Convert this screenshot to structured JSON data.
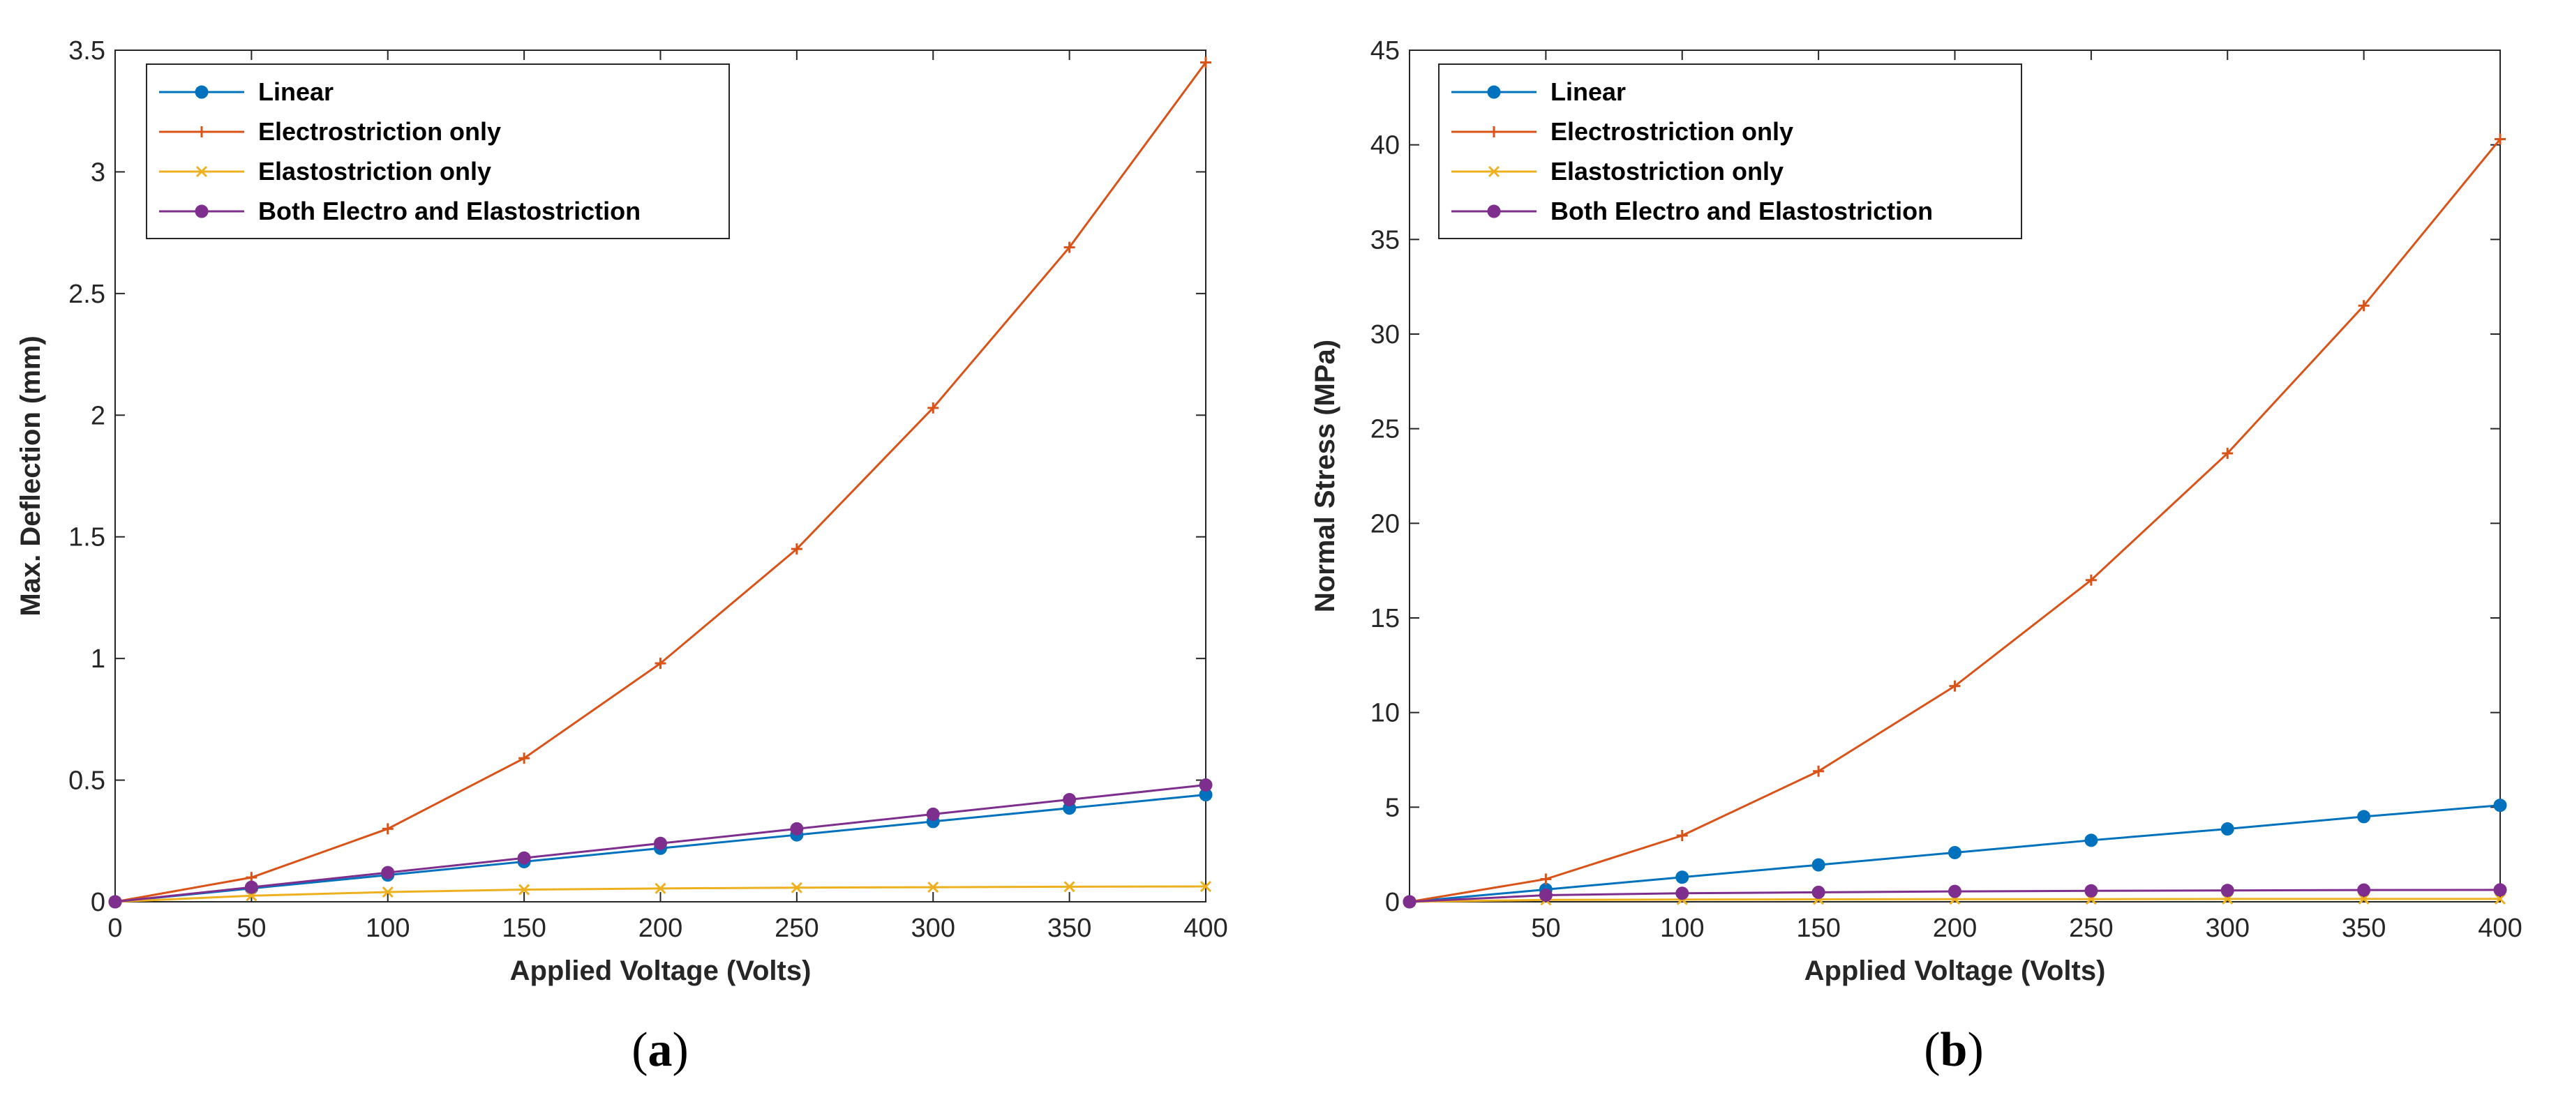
{
  "chart_data": [
    {
      "type": "line",
      "caption_letter": "a",
      "xlabel": "Applied Voltage (Volts)",
      "ylabel": "Max. Deflection (mm)",
      "xlim": [
        0,
        400
      ],
      "ylim": [
        0,
        3.5
      ],
      "xticks": [
        0,
        50,
        100,
        150,
        200,
        250,
        300,
        350,
        400
      ],
      "xtick_labels": [
        "0",
        "50",
        "100",
        "150",
        "200",
        "250",
        "300",
        "350",
        "400"
      ],
      "yticks": [
        0,
        0.5,
        1,
        1.5,
        2,
        2.5,
        3,
        3.5
      ],
      "ytick_labels": [
        "0",
        "0.5",
        "1",
        "1.5",
        "2",
        "2.5",
        "3",
        "3.5"
      ],
      "grid": false,
      "legend_position": "top-left",
      "x": [
        0,
        50,
        100,
        150,
        200,
        250,
        300,
        350,
        400
      ],
      "series": [
        {
          "name": "Linear",
          "color": "#0072BD",
          "marker": "dot",
          "values": [
            0,
            0.055,
            0.11,
            0.165,
            0.22,
            0.275,
            0.33,
            0.385,
            0.44
          ]
        },
        {
          "name": "Electrostriction only",
          "color": "#D95319",
          "marker": "plus",
          "values": [
            0,
            0.1,
            0.3,
            0.59,
            0.98,
            1.45,
            2.03,
            2.69,
            3.45
          ]
        },
        {
          "name": "Elastostriction only",
          "color": "#EDB120",
          "marker": "x",
          "values": [
            0,
            0.025,
            0.04,
            0.05,
            0.055,
            0.058,
            0.06,
            0.062,
            0.063
          ]
        },
        {
          "name": "Both Electro and Elastostriction",
          "color": "#7E2F8E",
          "marker": "dot",
          "values": [
            0,
            0.06,
            0.12,
            0.18,
            0.24,
            0.3,
            0.36,
            0.42,
            0.48
          ]
        }
      ]
    },
    {
      "type": "line",
      "caption_letter": "b",
      "xlabel": "Applied Voltage (Volts)",
      "ylabel": "Normal Stress (MPa)",
      "xlim": [
        0,
        400
      ],
      "ylim": [
        0,
        45
      ],
      "xticks": [
        50,
        100,
        150,
        200,
        250,
        300,
        350,
        400
      ],
      "xtick_labels": [
        "50",
        "100",
        "150",
        "200",
        "250",
        "300",
        "350",
        "400"
      ],
      "yticks": [
        0,
        5,
        10,
        15,
        20,
        25,
        30,
        35,
        40,
        45
      ],
      "ytick_labels": [
        "0",
        "5",
        "10",
        "15",
        "20",
        "25",
        "30",
        "35",
        "40",
        "45"
      ],
      "grid": false,
      "legend_position": "top-left",
      "x": [
        0,
        50,
        100,
        150,
        200,
        250,
        300,
        350,
        400
      ],
      "series": [
        {
          "name": "Linear",
          "color": "#0072BD",
          "marker": "dot",
          "values": [
            0,
            0.65,
            1.3,
            1.95,
            2.6,
            3.25,
            3.85,
            4.5,
            5.1
          ]
        },
        {
          "name": "Electrostriction only",
          "color": "#D95319",
          "marker": "plus",
          "values": [
            0,
            1.2,
            3.5,
            6.9,
            11.4,
            17.0,
            23.7,
            31.5,
            40.3
          ]
        },
        {
          "name": "Elastostriction only",
          "color": "#EDB120",
          "marker": "x",
          "values": [
            0,
            0.1,
            0.12,
            0.13,
            0.14,
            0.14,
            0.15,
            0.15,
            0.15
          ]
        },
        {
          "name": "Both Electro and Elastostriction",
          "color": "#7E2F8E",
          "marker": "dot",
          "values": [
            0,
            0.35,
            0.45,
            0.5,
            0.55,
            0.58,
            0.6,
            0.62,
            0.63
          ]
        }
      ]
    }
  ]
}
